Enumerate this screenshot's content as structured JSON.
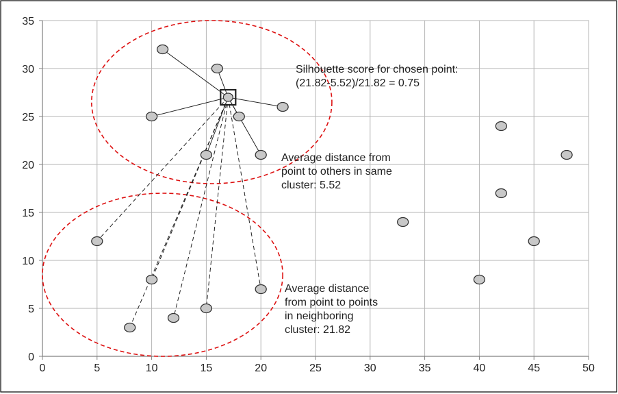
{
  "chart_data": {
    "type": "scatter",
    "xlim": [
      0,
      50
    ],
    "ylim": [
      0,
      35
    ],
    "x_ticks": [
      0,
      5,
      10,
      15,
      20,
      25,
      30,
      35,
      40,
      45,
      50
    ],
    "y_ticks": [
      0,
      5,
      10,
      15,
      20,
      25,
      30,
      35
    ],
    "grid": true,
    "chosen_point": [
      17,
      27
    ],
    "series": [
      {
        "points": [
          [
            11,
            32
          ],
          [
            16,
            30
          ],
          [
            10,
            25
          ],
          [
            18,
            25
          ],
          [
            22,
            26
          ],
          [
            15,
            21
          ],
          [
            20,
            21
          ],
          [
            5,
            12
          ],
          [
            10,
            8
          ],
          [
            20,
            7
          ],
          [
            8,
            3
          ],
          [
            12,
            4
          ],
          [
            15,
            5
          ],
          [
            33,
            14
          ],
          [
            42,
            24
          ],
          [
            48,
            21
          ],
          [
            42,
            17
          ],
          [
            45,
            12
          ],
          [
            40,
            8
          ]
        ]
      }
    ],
    "same_cluster_links": [
      [
        11,
        32
      ],
      [
        16,
        30
      ],
      [
        10,
        25
      ],
      [
        18,
        25
      ],
      [
        22,
        26
      ],
      [
        15,
        21
      ],
      [
        20,
        21
      ]
    ],
    "neighbor_cluster_links": [
      [
        5,
        12
      ],
      [
        10,
        8
      ],
      [
        20,
        7
      ],
      [
        8,
        3
      ],
      [
        12,
        4
      ],
      [
        15,
        5
      ]
    ],
    "cluster_regions": [
      {
        "cx": 15.5,
        "cy": 26.5,
        "rx": 11,
        "ry": 8.5
      },
      {
        "cx": 11,
        "cy": 8.5,
        "rx": 11,
        "ry": 8.5
      }
    ],
    "annotations": [
      {
        "lines": [
          "Silhouette score for chosen point:",
          "(21.82-5.52)/21.82 = 0.75"
        ]
      },
      {
        "lines": [
          "Average distance from",
          "point to others in same",
          "cluster: 5.52"
        ]
      },
      {
        "lines": [
          "Average distance",
          "from point to points",
          "in neighboring",
          "cluster: 21.82"
        ]
      }
    ]
  }
}
